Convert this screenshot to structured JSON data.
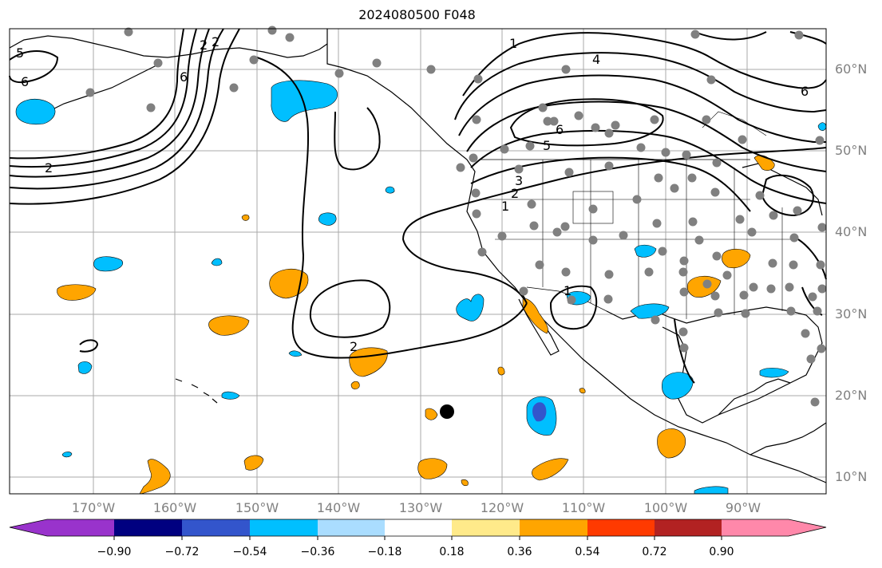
{
  "title": "2024080500 F048",
  "lat_labels": [
    "60°N",
    "50°N",
    "40°N",
    "30°N",
    "20°N",
    "10°N"
  ],
  "lon_labels": [
    "170°W",
    "160°W",
    "150°W",
    "140°W",
    "130°W",
    "120°W",
    "110°W",
    "100°W",
    "90°W"
  ],
  "contour_labels": [
    "5",
    "6",
    "2",
    "2",
    "6",
    "1",
    "4",
    "6",
    "5",
    "3",
    "2",
    "1",
    "6",
    "2",
    "1",
    "2"
  ],
  "colorbar": {
    "tick_labels": [
      "−0.90",
      "−0.72",
      "−0.54",
      "−0.36",
      "−0.18",
      "0.18",
      "0.36",
      "0.54",
      "0.72",
      "0.90"
    ],
    "colors": [
      "#9933cc",
      "#000080",
      "#3355cc",
      "#00bfff",
      "#aaddff",
      "#ffffff",
      "#ffea8a",
      "#ffa500",
      "#ff3a00",
      "#b22222",
      "#ff88aa"
    ]
  },
  "colors": {
    "negative_shade": "#00bfff",
    "strong_negative_shade": "#3355cc",
    "positive_shade": "#ffa500",
    "station_dot": "#808080",
    "grid": "#aaaaaa"
  }
}
